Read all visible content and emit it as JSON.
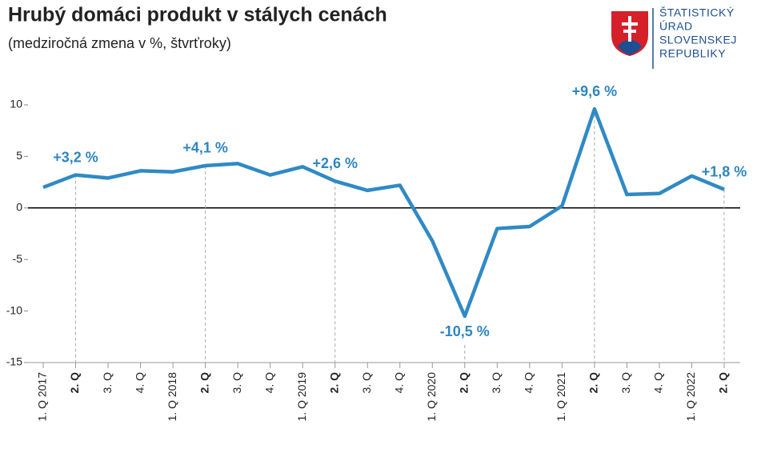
{
  "chart_data": {
    "type": "line",
    "title": "Hrubý domáci produkt v stálych cenách",
    "subtitle": "(medziročná zmena v %, štvrťroky)",
    "categories": [
      "1. Q 2017",
      "2. Q",
      "3. Q",
      "4. Q",
      "1. Q 2018",
      "2. Q",
      "3. Q",
      "4. Q",
      "1. Q 2019",
      "2. Q",
      "3. Q",
      "4. Q",
      "1. Q 2020",
      "2. Q",
      "3. Q",
      "4. Q",
      "1. Q 2021",
      "2. Q",
      "3. Q",
      "4. Q",
      "1. Q 2022",
      "2. Q"
    ],
    "values": [
      2.0,
      3.2,
      2.9,
      3.6,
      3.5,
      4.1,
      4.3,
      3.2,
      4.0,
      2.6,
      1.7,
      2.2,
      -3.2,
      -10.5,
      -2.0,
      -1.8,
      0.2,
      9.6,
      1.3,
      1.4,
      3.1,
      1.8
    ],
    "value_labels": [
      null,
      "+3,2 %",
      null,
      null,
      null,
      "+4,1 %",
      null,
      null,
      null,
      "+2,6 %",
      null,
      null,
      null,
      "-10,5 %",
      null,
      null,
      null,
      "+9,6 %",
      null,
      null,
      null,
      "+1,8 %"
    ],
    "color": "#2f8ac4",
    "ylim": [
      -15,
      10
    ],
    "yticks": [
      10,
      5,
      0,
      -5,
      -10,
      -15
    ],
    "logo": [
      "ŠTATISTICKÝ",
      "ÚRAD",
      "SLOVENSKEJ",
      "REPUBLIKY"
    ]
  }
}
